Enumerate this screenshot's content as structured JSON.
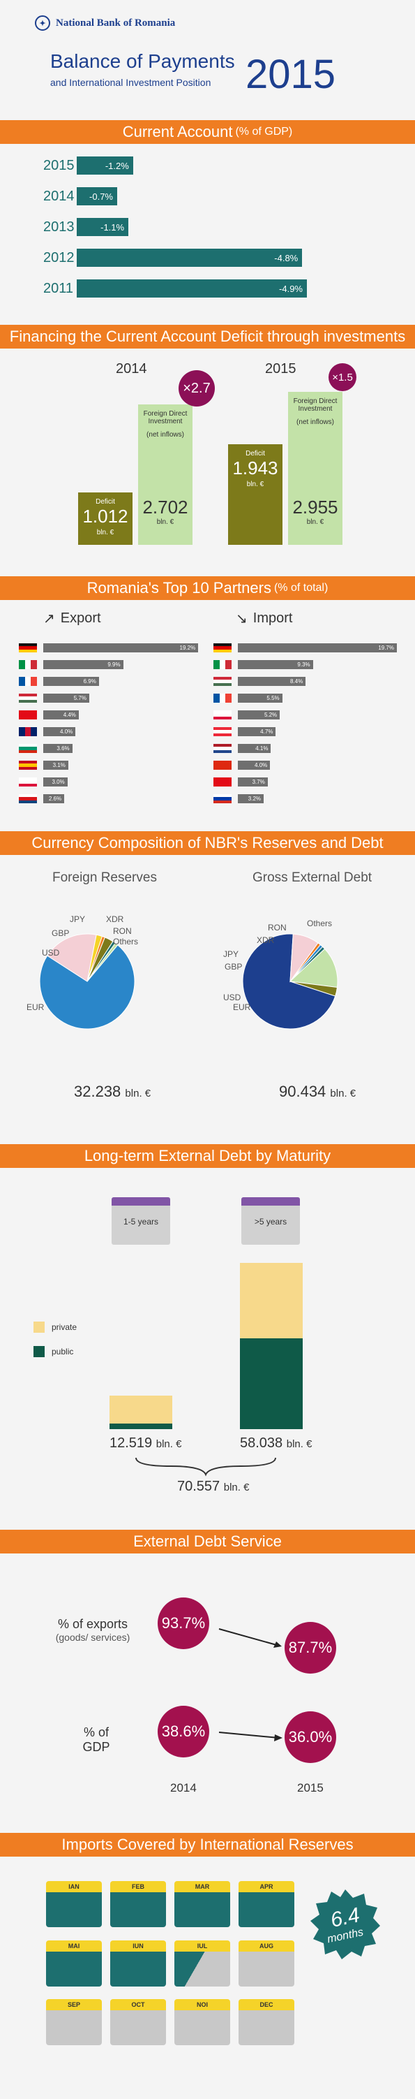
{
  "header": {
    "bank_name": "National Bank of Romania",
    "title": "Balance of Payments",
    "subtitle": "and International Investment Position",
    "year": "2015"
  },
  "current_account": {
    "band_title": "Current Account",
    "band_unit": "(% of GDP)",
    "rows": [
      {
        "year": "2015",
        "value": -1.2,
        "label": "-1.2%"
      },
      {
        "year": "2014",
        "value": -0.7,
        "label": "-0.7%"
      },
      {
        "year": "2013",
        "value": -1.1,
        "label": "-1.1%"
      },
      {
        "year": "2012",
        "value": -4.8,
        "label": "-4.8%"
      },
      {
        "year": "2011",
        "value": -4.9,
        "label": "-4.9%"
      }
    ]
  },
  "financing": {
    "band_title": "Financing the Current Account Deficit through investments",
    "years": [
      {
        "year": "2014",
        "deficit_label": "Deficit",
        "deficit_value": "1.012",
        "fdi_label": "Foreign Direct Investment",
        "fdi_sub": "(net inflows)",
        "fdi_value": "2.702",
        "unit": "bln. €",
        "ratio": "×2.7"
      },
      {
        "year": "2015",
        "deficit_label": "Deficit",
        "deficit_value": "1.943",
        "fdi_label": "Foreign Direct Investment",
        "fdi_sub": "(net inflows)",
        "fdi_value": "2.955",
        "unit": "bln. €",
        "ratio": "×1.5"
      }
    ]
  },
  "partners": {
    "band_title": "Romania's Top 10 Partners",
    "band_unit": "(% of total)",
    "export_title": "Export",
    "import_title": "Import",
    "export": [
      {
        "country": "Germany",
        "value": 19.2,
        "label": "19.2%"
      },
      {
        "country": "Italy",
        "value": 9.9,
        "label": "9.9%"
      },
      {
        "country": "France",
        "value": 6.9,
        "label": "6.9%"
      },
      {
        "country": "Hungary",
        "value": 5.7,
        "label": "5.7%"
      },
      {
        "country": "Turkey",
        "value": 4.4,
        "label": "4.4%"
      },
      {
        "country": "United Kingdom",
        "value": 4.0,
        "label": "4.0%"
      },
      {
        "country": "Bulgaria",
        "value": 3.6,
        "label": "3.6%"
      },
      {
        "country": "Spain",
        "value": 3.1,
        "label": "3.1%"
      },
      {
        "country": "Poland",
        "value": 3.0,
        "label": "3.0%"
      },
      {
        "country": "Czech Republic",
        "value": 2.6,
        "label": "2.6%"
      }
    ],
    "import": [
      {
        "country": "Germany",
        "value": 19.7,
        "label": "19.7%"
      },
      {
        "country": "Italy",
        "value": 9.3,
        "label": "9.3%"
      },
      {
        "country": "Hungary",
        "value": 8.4,
        "label": "8.4%"
      },
      {
        "country": "France",
        "value": 5.5,
        "label": "5.5%"
      },
      {
        "country": "Poland",
        "value": 5.2,
        "label": "5.2%"
      },
      {
        "country": "Austria",
        "value": 4.7,
        "label": "4.7%"
      },
      {
        "country": "Netherlands",
        "value": 4.1,
        "label": "4.1%"
      },
      {
        "country": "China",
        "value": 4.0,
        "label": "4.0%"
      },
      {
        "country": "Turkey",
        "value": 3.7,
        "label": "3.7%"
      },
      {
        "country": "Russia",
        "value": 3.2,
        "label": "3.2%"
      }
    ]
  },
  "currency": {
    "band_title": "Currency Composition of NBR's Reserves and Debt",
    "reserves_title": "Foreign Reserves",
    "debt_title": "Gross External Debt",
    "reserves_total": "32.238",
    "debt_total": "90.434",
    "unit": "bln. €",
    "reserves_slices": [
      {
        "name": "EUR",
        "value": 73,
        "color": "#2a86c9"
      },
      {
        "name": "USD",
        "value": 19,
        "color": "#f4cfd5"
      },
      {
        "name": "GBP",
        "value": 2,
        "color": "#f5d329"
      },
      {
        "name": "JPY",
        "value": 1,
        "color": "#ef7d22"
      },
      {
        "name": "XDR",
        "value": 3,
        "color": "#7d7a1a"
      },
      {
        "name": "RON",
        "value": 1,
        "color": "#1d6f6f"
      },
      {
        "name": "Others",
        "value": 1,
        "color": "#c3e2a8"
      }
    ],
    "debt_slices": [
      {
        "name": "EUR",
        "value": 71,
        "color": "#1d3f8e"
      },
      {
        "name": "USD",
        "value": 9,
        "color": "#f4cfd5"
      },
      {
        "name": "GBP",
        "value": 1,
        "color": "#ef7d22"
      },
      {
        "name": "JPY",
        "value": 1,
        "color": "#2a86c9"
      },
      {
        "name": "XDR",
        "value": 1,
        "color": "#1d6f6f"
      },
      {
        "name": "RON",
        "value": 14,
        "color": "#c3e2a8"
      },
      {
        "name": "Others",
        "value": 3,
        "color": "#7d7a1a"
      }
    ]
  },
  "maturity": {
    "band_title": "Long-term External Debt by Maturity",
    "short_label": "1-5 years",
    "long_label": ">5 years",
    "legend_private": "private",
    "legend_public": "public",
    "short_total": "12.519",
    "long_total": "58.038",
    "grand_total": "70.557",
    "unit": "bln. €",
    "private_color": "#f7d98b",
    "public_color": "#0f5a48"
  },
  "debt_service": {
    "band_title": "External Debt Service",
    "exports_label": "% of exports",
    "exports_sub": "(goods/ services)",
    "gdp_label": "% of GDP",
    "exports_2014": "93.7%",
    "exports_2015": "87.7%",
    "gdp_2014": "38.6%",
    "gdp_2015": "36.0%",
    "year_a": "2014",
    "year_b": "2015"
  },
  "imports": {
    "band_title": "Imports Covered by International Reserves",
    "months": [
      "IAN",
      "FEB",
      "MAR",
      "APR",
      "MAI",
      "IUN",
      "IUL",
      "AUG",
      "SEP",
      "OCT",
      "NOI",
      "DEC"
    ],
    "covered_months": 6.4,
    "value": "6.4",
    "unit": "months"
  }
}
